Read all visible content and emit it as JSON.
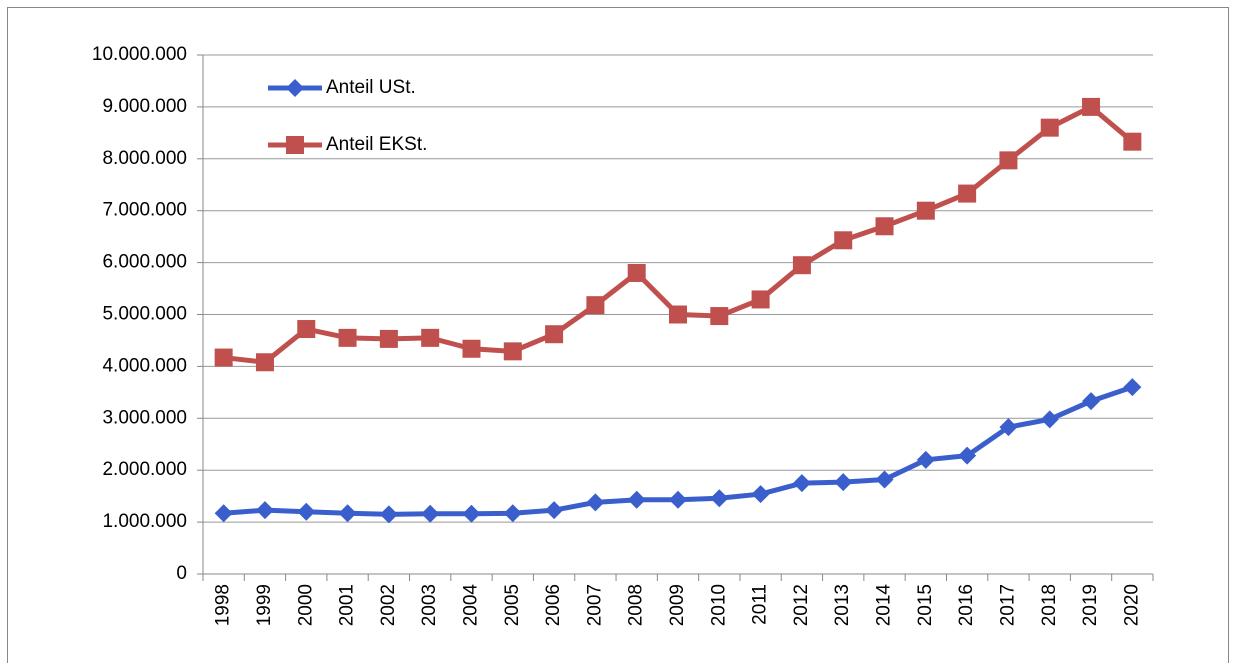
{
  "chart_data": {
    "type": "line",
    "categories": [
      "1998",
      "1999",
      "2000",
      "2001",
      "2002",
      "2003",
      "2004",
      "2005",
      "2006",
      "2007",
      "2008",
      "2009",
      "2010",
      "2011",
      "2012",
      "2013",
      "2014",
      "2015",
      "2016",
      "2017",
      "2018",
      "2019",
      "2020"
    ],
    "series": [
      {
        "name": "Anteil USt.",
        "color": "#3a5fcd",
        "marker": "diamond",
        "values": [
          1170000,
          1230000,
          1200000,
          1170000,
          1150000,
          1160000,
          1160000,
          1170000,
          1230000,
          1380000,
          1430000,
          1430000,
          1460000,
          1540000,
          1750000,
          1770000,
          1820000,
          2200000,
          2280000,
          2830000,
          2980000,
          3330000,
          3600000
        ]
      },
      {
        "name": "Anteil EKSt.",
        "color": "#c0504d",
        "marker": "square",
        "values": [
          4170000,
          4080000,
          4720000,
          4550000,
          4530000,
          4550000,
          4340000,
          4290000,
          4620000,
          5180000,
          5800000,
          5000000,
          4970000,
          5290000,
          5950000,
          6430000,
          6700000,
          7000000,
          7330000,
          7970000,
          8600000,
          9000000,
          8330000
        ]
      }
    ],
    "ylim": [
      0,
      10000000
    ],
    "yticks": [
      0,
      {
        "value": 1000000,
        "label": "1.000.000"
      },
      {
        "value": 2000000,
        "label": "2.000.000"
      },
      {
        "value": 3000000,
        "label": "3.000.000"
      },
      {
        "value": 4000000,
        "label": "4.000.000"
      },
      {
        "value": 5000000,
        "label": "5.000.000"
      },
      {
        "value": 6000000,
        "label": "6.000.000"
      },
      {
        "value": 7000000,
        "label": "7.000.000"
      },
      {
        "value": 8000000,
        "label": "8.000.000"
      },
      {
        "value": 9000000,
        "label": "9.000.000"
      },
      {
        "value": 10000000,
        "label": "10.000.000"
      }
    ],
    "grid": true,
    "legend": "top-left"
  }
}
